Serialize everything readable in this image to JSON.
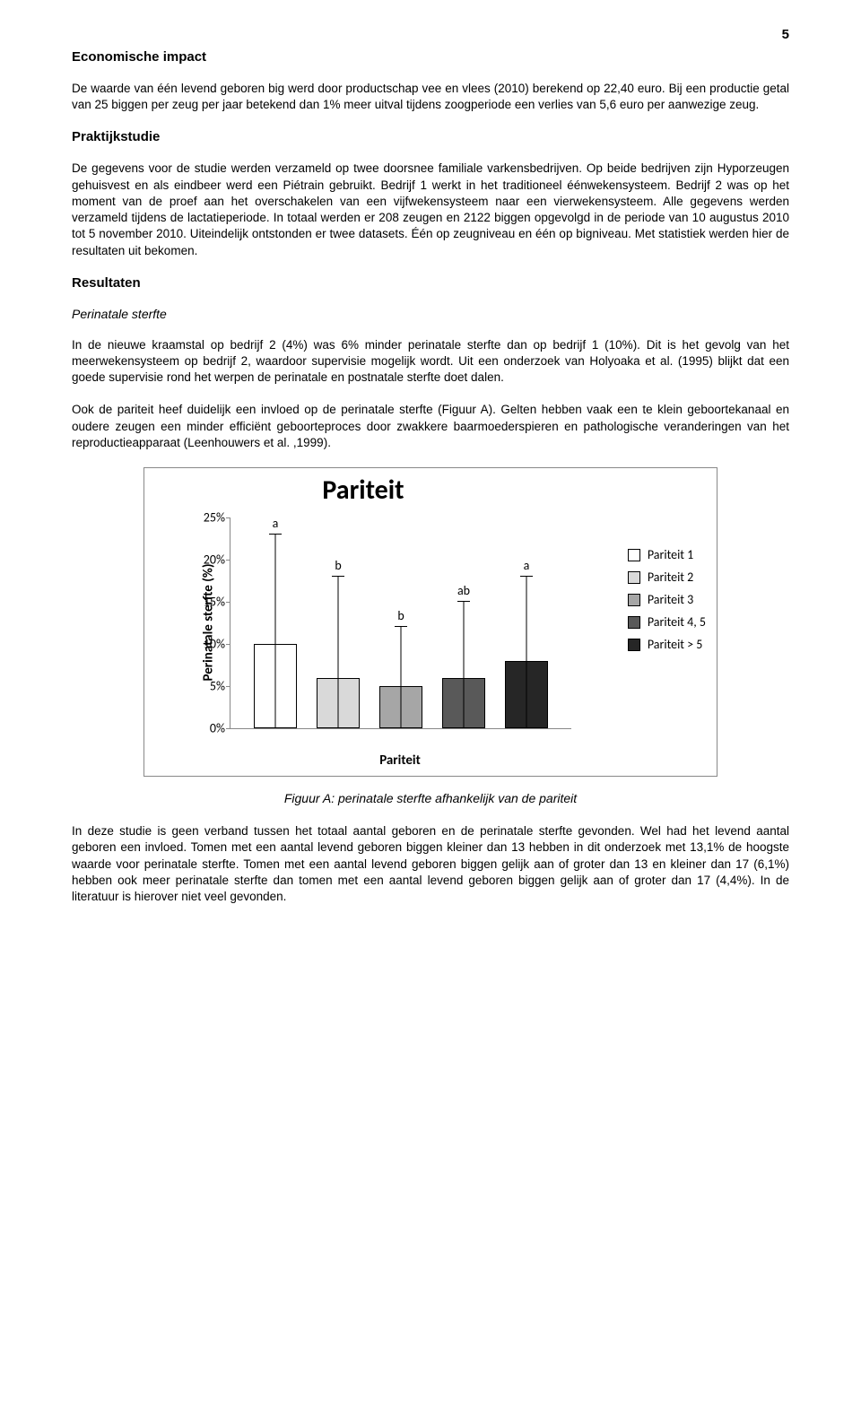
{
  "page_number": "5",
  "sections": {
    "s1": {
      "heading": "Economische impact",
      "p1": "De waarde van één levend geboren big werd door productschap vee en vlees (2010) berekend op 22,40 euro. Bij een productie getal van 25 biggen per zeug per jaar betekend dan 1% meer uitval tijdens zoogperiode een verlies van 5,6 euro per aanwezige zeug."
    },
    "s2": {
      "heading": "Praktijkstudie",
      "p1": "De gegevens voor de studie werden verzameld op twee doorsnee familiale varkensbedrijven. Op beide bedrijven zijn Hyporzeugen gehuisvest en als eindbeer werd een Piétrain gebruikt. Bedrijf 1 werkt in het traditioneel éénwekensysteem. Bedrijf 2 was op het moment van de proef aan het overschakelen van een vijfwekensysteem naar een vierwekensysteem. Alle gegevens werden verzameld tijdens de lactatieperiode. In totaal werden er 208 zeugen en 2122 biggen opgevolgd in de periode van 10 augustus 2010 tot 5 november 2010. Uiteindelijk ontstonden er twee datasets. Één op zeugniveau en één op bigniveau. Met statistiek werden hier de resultaten uit bekomen."
    },
    "s3": {
      "heading": "Resultaten",
      "sub": "Perinatale sterfte",
      "p1": "In de nieuwe kraamstal op bedrijf 2 (4%) was 6% minder perinatale sterfte dan op bedrijf 1 (10%). Dit is het gevolg van het meerwekensysteem op bedrijf 2, waardoor supervisie mogelijk wordt. Uit een onderzoek van Holyoaka et al. (1995) blijkt dat een goede supervisie rond het werpen de perinatale en postnatale sterfte doet dalen.",
      "p2": "Ook de pariteit heef duidelijk een invloed op de perinatale sterfte (Figuur A). Gelten hebben vaak een te klein geboortekanaal en oudere zeugen een minder efficiënt geboorteproces door zwakkere baarmoederspieren en pathologische veranderingen van het reproductieapparaat (Leenhouwers et al. ,1999)."
    },
    "after_chart": {
      "p1": "In deze studie is geen verband tussen het totaal aantal geboren en de perinatale sterfte gevonden. Wel had het levend aantal geboren een invloed. Tomen met een aantal levend geboren biggen kleiner dan 13 hebben in dit onderzoek met 13,1% de hoogste waarde voor perinatale sterfte. Tomen met een aantal levend geboren biggen gelijk aan of groter dan 13 en kleiner dan 17 (6,1%) hebben ook meer perinatale sterfte dan tomen met een aantal levend geboren biggen gelijk aan of groter dan 17 (4,4%). In de literatuur is hierover niet veel gevonden."
    }
  },
  "chart": {
    "title": "Pariteit",
    "y_label": "Perinatale sterfte (%)",
    "x_label": "Pariteit",
    "y_max": 25,
    "y_ticks": [
      "0%",
      "5%",
      "10%",
      "15%",
      "20%",
      "25%"
    ],
    "y_tick_values": [
      0,
      5,
      10,
      15,
      20,
      25
    ],
    "bars": [
      {
        "value": 10,
        "error_top": 23,
        "sig": "a",
        "color": "#ffffff",
        "legend": "Pariteit 1"
      },
      {
        "value": 6,
        "error_top": 18,
        "sig": "b",
        "color": "#d9d9d9",
        "legend": "Pariteit 2"
      },
      {
        "value": 5,
        "error_top": 12,
        "sig": "b",
        "color": "#a6a6a6",
        "legend": "Pariteit 3"
      },
      {
        "value": 6,
        "error_top": 15,
        "sig": "ab",
        "color": "#595959",
        "legend": "Pariteit 4, 5"
      },
      {
        "value": 8,
        "error_top": 18,
        "sig": "a",
        "color": "#262626",
        "legend": "Pariteit > 5"
      }
    ],
    "caption": "Figuur A: perinatale sterfte afhankelijk van de pariteit"
  }
}
